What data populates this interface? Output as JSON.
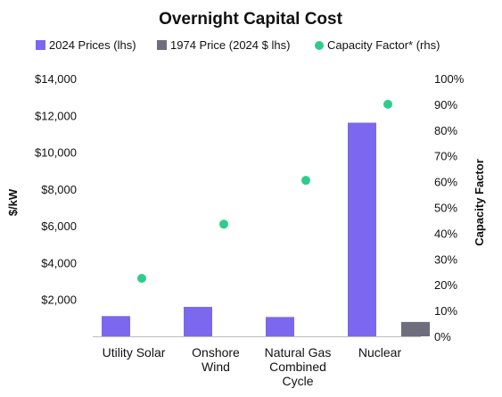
{
  "chart_data": {
    "type": "bar",
    "title": "Overnight Capital Cost",
    "categories": [
      "Utility Solar",
      "Onshore Wind",
      "Natural Gas Combined Cycle",
      "Nuclear"
    ],
    "category_lines": [
      [
        "Utility Solar"
      ],
      [
        "Onshore",
        "Wind"
      ],
      [
        "Natural Gas",
        "Combined",
        "Cycle"
      ],
      [
        "Nuclear"
      ]
    ],
    "series": [
      {
        "name": "2024 Prices (lhs)",
        "type": "bar",
        "axis": "left",
        "color": "#7b68ee",
        "values": [
          1100,
          1600,
          1050,
          11600
        ]
      },
      {
        "name": "1974 Price (2024 $ lhs)",
        "type": "bar",
        "axis": "left",
        "color": "#6e6e7e",
        "values": [
          null,
          null,
          null,
          780
        ]
      },
      {
        "name": "Capacity Factor* (rhs)",
        "type": "scatter",
        "axis": "right",
        "color": "#2ecc8a",
        "values": [
          22.5,
          43.5,
          60.5,
          90.0
        ]
      }
    ],
    "y_left": {
      "label": "$/kW",
      "ylim": [
        0,
        14000
      ],
      "ticks": [
        0,
        2000,
        4000,
        6000,
        8000,
        10000,
        12000,
        14000
      ],
      "tick_labels": [
        "",
        "$2,000",
        "$4,000",
        "$6,000",
        "$8,000",
        "$10,000",
        "$12,000",
        "$14,000"
      ]
    },
    "y_right": {
      "label": "Capacity Factor",
      "ylim": [
        0,
        100
      ],
      "ticks": [
        0,
        10,
        20,
        30,
        40,
        50,
        60,
        70,
        80,
        90,
        100
      ],
      "tick_labels": [
        "0%",
        "10%",
        "20%",
        "30%",
        "40%",
        "50%",
        "60%",
        "70%",
        "80%",
        "90%",
        "100%"
      ]
    },
    "legend": {
      "placement": "top"
    },
    "grid": false
  }
}
